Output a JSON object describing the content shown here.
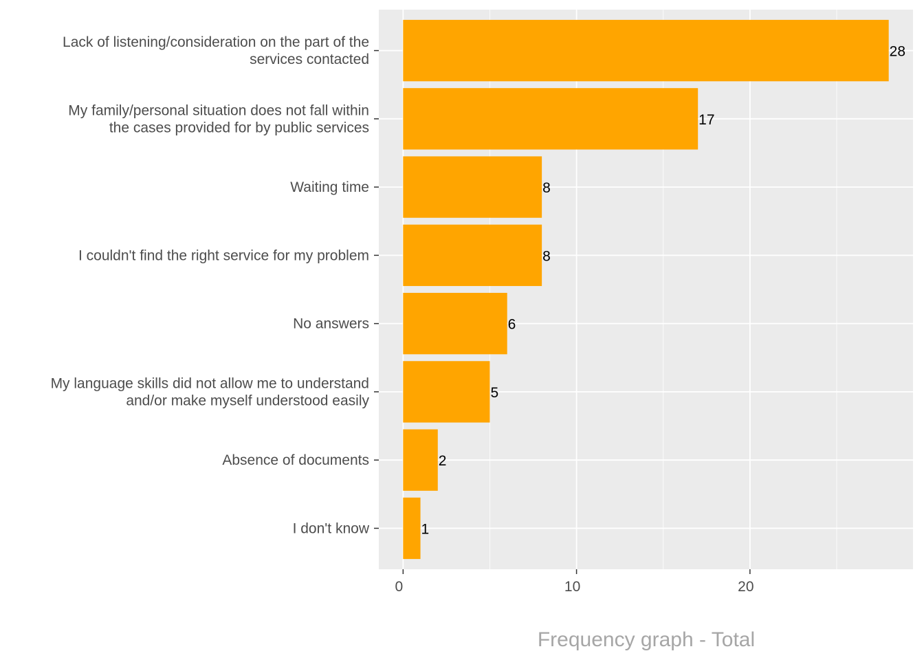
{
  "chart_data": {
    "type": "bar",
    "orientation": "horizontal",
    "categories": [
      [
        "Lack of listening/consideration on the part of the",
        "services contacted"
      ],
      [
        "My family/personal situation does not fall within",
        "the cases provided for by public services"
      ],
      [
        "Waiting time"
      ],
      [
        "I couldn't find the right service for my problem"
      ],
      [
        "No answers"
      ],
      [
        "My language skills did not allow me to understand",
        "and/or make myself understood easily"
      ],
      [
        "Absence of documents"
      ],
      [
        "I don't know"
      ]
    ],
    "values": [
      28,
      17,
      8,
      8,
      6,
      5,
      2,
      1
    ],
    "data_labels": [
      "28",
      "17",
      "8",
      "8",
      "6",
      "5",
      "2",
      "1"
    ],
    "xlabel": "Frequency graph - Total",
    "ylabel": "",
    "xlim": [
      -1.4,
      29.4
    ],
    "x_ticks": [
      0,
      10,
      20
    ],
    "x_tick_labels": [
      "0",
      "10",
      "20"
    ],
    "grid": true,
    "bar_color": "#FFA500",
    "panel_color": "#EBEBEB"
  }
}
